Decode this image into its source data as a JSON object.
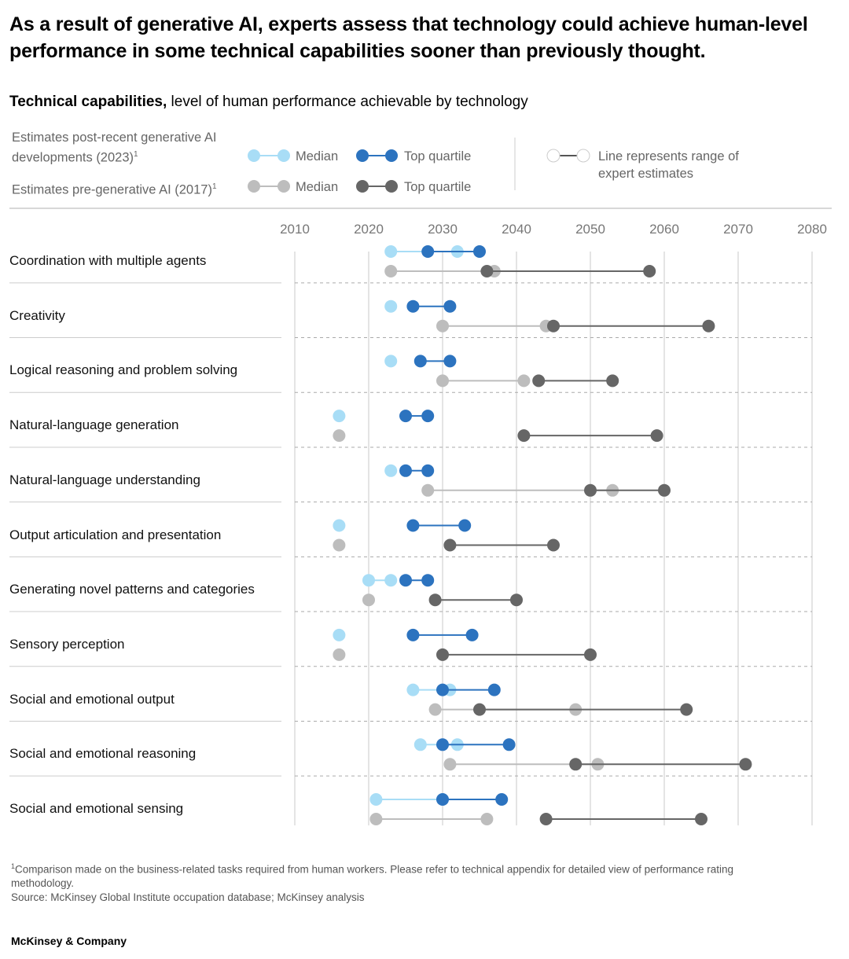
{
  "title": "As a result of generative AI, experts assess that technology could achieve human-level performance in some technical capabilities sooner than previously thought.",
  "subtitle_bold": "Technical capabilities,",
  "subtitle_rest": " level of human performance achievable by technology",
  "legend": {
    "post_label": "Estimates post-recent generative AI developments (2023)",
    "pre_label": "Estimates pre-generative AI (2017)",
    "footnote_mark": "1",
    "median": "Median",
    "top_quartile": "Top quartile",
    "range_note": "Line represents range of expert estimates"
  },
  "colors": {
    "median_2023": "#a8ddf6",
    "top_2023": "#2c73bf",
    "median_2017": "#bdbdbd",
    "top_2017": "#666666",
    "grid": "#c8c8c8"
  },
  "chart_data": {
    "type": "dumbbell",
    "x_ticks": [
      2010,
      2020,
      2030,
      2040,
      2050,
      2060,
      2070,
      2080
    ],
    "xlim": [
      2010,
      2080
    ],
    "series_names": [
      "Median 2023",
      "Top quartile 2023",
      "Median 2017",
      "Top quartile 2017"
    ],
    "rows": [
      {
        "label": "Coordination with multiple agents",
        "median_2023": [
          2023,
          2032
        ],
        "top_2023": [
          2028,
          2035
        ],
        "median_2017": [
          2023,
          2037
        ],
        "top_2017": [
          2036,
          2058
        ]
      },
      {
        "label": "Creativity",
        "median_2023": [
          2023,
          2023
        ],
        "top_2023": [
          2026,
          2031
        ],
        "median_2017": [
          2030,
          2044
        ],
        "top_2017": [
          2045,
          2066
        ]
      },
      {
        "label": "Logical reasoning and problem solving",
        "median_2023": [
          2023,
          2023
        ],
        "top_2023": [
          2027,
          2031
        ],
        "median_2017": [
          2030,
          2041
        ],
        "top_2017": [
          2043,
          2053
        ]
      },
      {
        "label": "Natural-language generation",
        "median_2023": [
          2016,
          2016
        ],
        "top_2023": [
          2025,
          2028
        ],
        "median_2017": [
          2016,
          2016
        ],
        "top_2017": [
          2041,
          2059
        ]
      },
      {
        "label": "Natural-language understanding",
        "median_2023": [
          2023,
          2023
        ],
        "top_2023": [
          2025,
          2028
        ],
        "median_2017": [
          2028,
          2053
        ],
        "top_2017": [
          2050,
          2060
        ]
      },
      {
        "label": "Output articulation and presentation",
        "median_2023": [
          2016,
          2016
        ],
        "top_2023": [
          2026,
          2033
        ],
        "median_2017": [
          2016,
          2016
        ],
        "top_2017": [
          2031,
          2045
        ]
      },
      {
        "label": "Generating novel patterns and categories",
        "median_2023": [
          2020,
          2023
        ],
        "top_2023": [
          2025,
          2028
        ],
        "median_2017": [
          2020,
          2020
        ],
        "top_2017": [
          2029,
          2040
        ]
      },
      {
        "label": "Sensory perception",
        "median_2023": [
          2016,
          2016
        ],
        "top_2023": [
          2026,
          2034
        ],
        "median_2017": [
          2016,
          2016
        ],
        "top_2017": [
          2030,
          2050
        ]
      },
      {
        "label": "Social and emotional output",
        "median_2023": [
          2026,
          2031
        ],
        "top_2023": [
          2030,
          2037
        ],
        "median_2017": [
          2029,
          2048
        ],
        "top_2017": [
          2035,
          2063
        ]
      },
      {
        "label": "Social and emotional reasoning",
        "median_2023": [
          2027,
          2032
        ],
        "top_2023": [
          2030,
          2039
        ],
        "median_2017": [
          2031,
          2051
        ],
        "top_2017": [
          2048,
          2071
        ]
      },
      {
        "label": "Social and emotional sensing",
        "median_2023": [
          2021,
          2030
        ],
        "top_2023": [
          2030,
          2038
        ],
        "median_2017": [
          2021,
          2036
        ],
        "top_2017": [
          2044,
          2065
        ]
      }
    ]
  },
  "footer": {
    "note_mark": "1",
    "note": "Comparison made on the business-related tasks required from human workers. Please refer to technical appendix for detailed view of performance rating methodology.",
    "source": "Source: McKinsey Global Institute occupation database; McKinsey analysis"
  },
  "brand": "McKinsey & Company"
}
